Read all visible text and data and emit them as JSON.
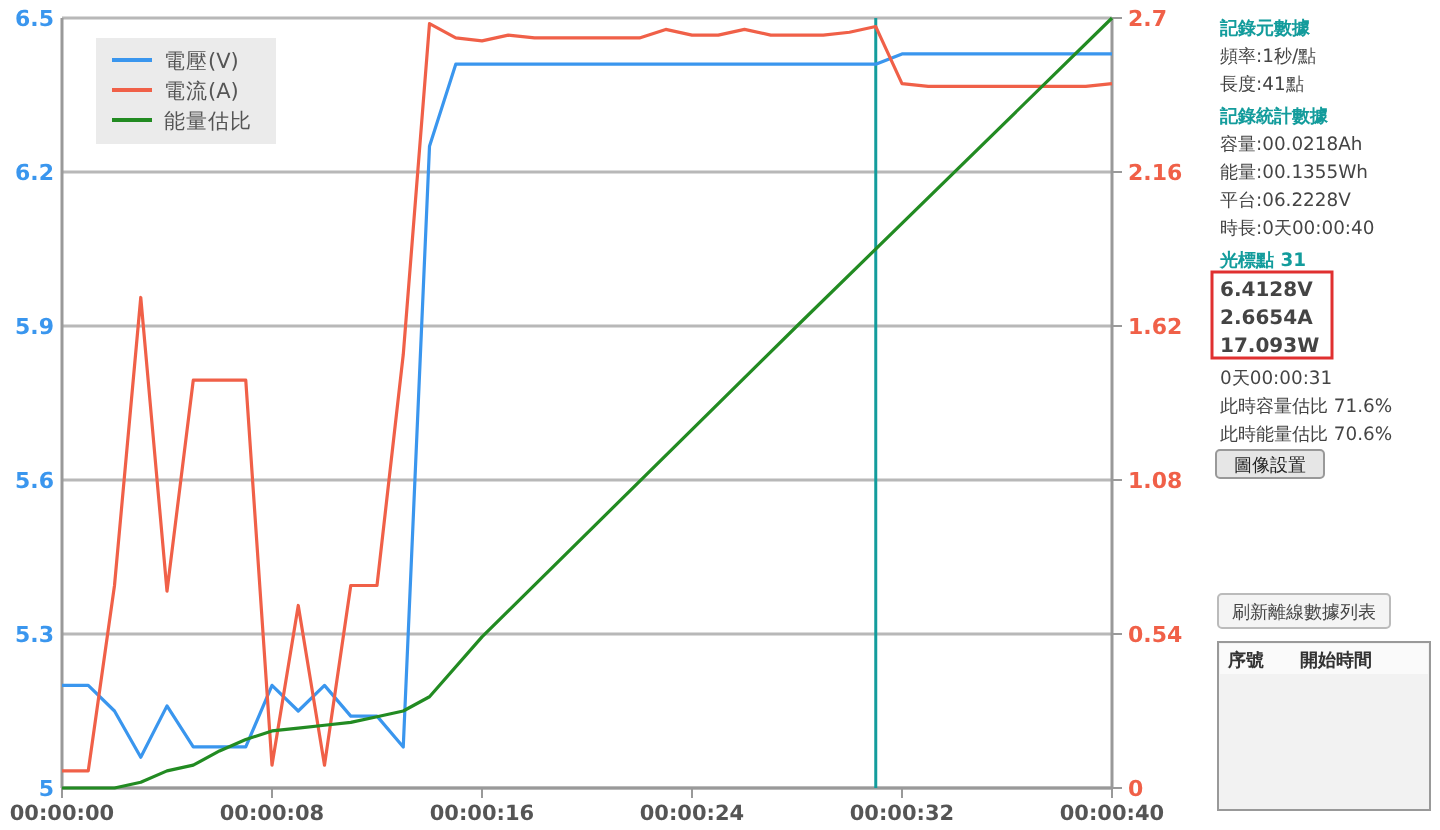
{
  "chart_data": {
    "type": "line",
    "x": [
      0,
      1,
      2,
      3,
      4,
      5,
      6,
      7,
      8,
      9,
      10,
      11,
      12,
      13,
      14,
      15,
      16,
      17,
      18,
      19,
      20,
      21,
      22,
      23,
      24,
      25,
      26,
      27,
      28,
      29,
      30,
      31,
      32,
      33,
      34,
      35,
      36,
      37,
      38,
      39,
      40
    ],
    "series": [
      {
        "name": "電壓(V)",
        "color": "#3a96ee",
        "values": [
          5.2,
          5.2,
          5.15,
          5.06,
          5.16,
          5.08,
          5.08,
          5.08,
          5.2,
          5.15,
          5.2,
          5.14,
          5.14,
          5.08,
          6.25,
          6.41,
          6.41,
          6.41,
          6.41,
          6.41,
          6.41,
          6.41,
          6.41,
          6.41,
          6.41,
          6.41,
          6.41,
          6.41,
          6.41,
          6.41,
          6.41,
          6.41,
          6.43,
          6.43,
          6.43,
          6.43,
          6.43,
          6.43,
          6.43,
          6.43,
          6.43
        ]
      },
      {
        "name": "電流(A)",
        "color": "#f06048",
        "axis": "y2",
        "values": [
          0.06,
          0.06,
          0.71,
          1.72,
          0.69,
          1.43,
          1.43,
          1.43,
          0.08,
          0.64,
          0.08,
          0.71,
          0.71,
          1.52,
          2.68,
          2.63,
          2.62,
          2.64,
          2.63,
          2.63,
          2.63,
          2.63,
          2.63,
          2.66,
          2.64,
          2.64,
          2.66,
          2.64,
          2.64,
          2.64,
          2.65,
          2.67,
          2.47,
          2.46,
          2.46,
          2.46,
          2.46,
          2.46,
          2.46,
          2.46,
          2.47
        ]
      },
      {
        "name": "能量估比",
        "color": "#228b22",
        "axis": "y2",
        "x": [
          0,
          2,
          3,
          4,
          5,
          6,
          7,
          8,
          9,
          10,
          11,
          12,
          13,
          14,
          16,
          28,
          40
        ],
        "values": [
          0,
          0,
          0.02,
          0.06,
          0.08,
          0.13,
          0.17,
          0.2,
          0.21,
          0.22,
          0.23,
          0.25,
          0.27,
          0.32,
          0.53,
          1.62,
          2.7
        ]
      }
    ],
    "xlim": [
      0,
      40
    ],
    "xticks": [
      {
        "value": 0,
        "label": "00:00:00"
      },
      {
        "value": 8,
        "label": "00:00:08"
      },
      {
        "value": 16,
        "label": "00:00:16"
      },
      {
        "value": 24,
        "label": "00:00:24"
      },
      {
        "value": 32,
        "label": "00:00:32"
      },
      {
        "value": 40,
        "label": "00:00:40"
      }
    ],
    "ylim": [
      5,
      6.5
    ],
    "yticks": [
      5,
      5.3,
      5.6,
      5.9,
      6.2,
      6.5
    ],
    "y2lim": [
      0,
      2.7
    ],
    "y2ticks": [
      0,
      0.54,
      1.08,
      1.62,
      2.16,
      2.7
    ],
    "grid": "y",
    "legend": "top left",
    "marker": "none",
    "line_style": "solid",
    "ref_lines": [
      {
        "axis": "x",
        "value": 31,
        "color": "#139c9c"
      }
    ],
    "annotations": [
      "記錄元數據",
      "頻率:1秒/點",
      "長度:41點",
      "記錄統計數據",
      "容量:00.0218Ah",
      "能量:00.1355Wh",
      "平台:06.2228V",
      "時長:0天00:00:40",
      "光標點 31",
      "6.4128V",
      "2.6654A",
      "17.093W",
      "0天00:00:31",
      "此時容量估比 71.6%",
      "此時能量估比 70.6%",
      "圖像設置",
      "刷新離線數據列表",
      "序號",
      "開始時間"
    ]
  }
}
